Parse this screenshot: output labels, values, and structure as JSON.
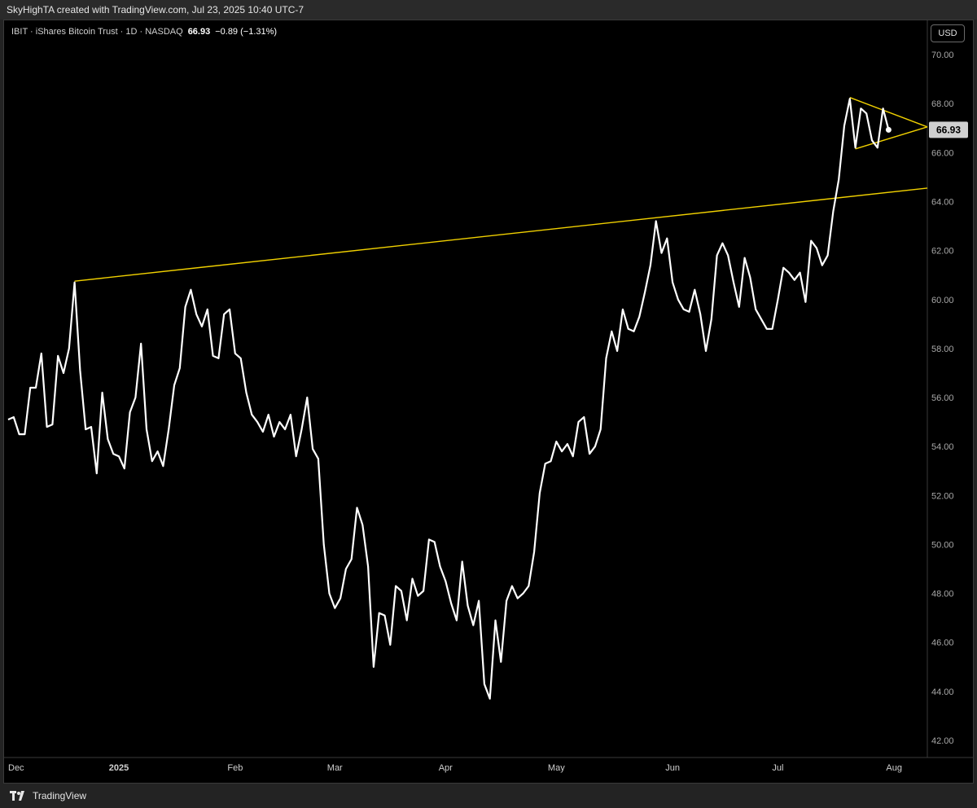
{
  "header": {
    "attribution": "SkyHighTA created with TradingView.com, Jul 23, 2025 10:40 UTC-7"
  },
  "legend": {
    "symbol_text": "IBIT · iShares Bitcoin Trust · 1D · NASDAQ",
    "last": "66.93",
    "change": "−0.89 (−1.31%)"
  },
  "toolbar": {
    "currency": "USD"
  },
  "footer": {
    "brand": "TradingView"
  },
  "colors": {
    "background": "#000000",
    "price_line": "#ffffff",
    "trendline": "#f0d000",
    "price_label_bg": "#d0d0d0"
  },
  "chart_data": {
    "type": "line",
    "title": "IBIT · iShares Bitcoin Trust · 1D · NASDAQ",
    "ylim": [
      41.3,
      71.4
    ],
    "xlim": [
      0,
      166
    ],
    "yticks": [
      "70.00",
      "68.00",
      "66.00",
      "64.00",
      "62.00",
      "60.00",
      "58.00",
      "56.00",
      "54.00",
      "52.00",
      "50.00",
      "48.00",
      "46.00",
      "44.00",
      "42.00"
    ],
    "xticks": [
      {
        "label": "Dec",
        "x": 0
      },
      {
        "label": "2025",
        "x": 20
      },
      {
        "label": "Feb",
        "x": 41
      },
      {
        "label": "Mar",
        "x": 59
      },
      {
        "label": "Apr",
        "x": 79
      },
      {
        "label": "May",
        "x": 99
      },
      {
        "label": "Jun",
        "x": 120
      },
      {
        "label": "Jul",
        "x": 139
      },
      {
        "label": "Aug",
        "x": 160
      }
    ],
    "last_price_label": "66.93",
    "series": [
      {
        "values": [
          55.1,
          55.2,
          54.5,
          54.5,
          56.4,
          56.4,
          57.8,
          54.8,
          54.9,
          57.7,
          57.0,
          58.0,
          60.7,
          57.1,
          54.7,
          54.8,
          52.9,
          56.2,
          54.3,
          53.7,
          53.6,
          53.1,
          55.4,
          56.0,
          58.2,
          54.7,
          53.4,
          53.8,
          53.2,
          54.7,
          56.5,
          57.2,
          59.7,
          60.4,
          59.4,
          58.9,
          59.6,
          57.7,
          57.6,
          59.4,
          59.6,
          57.8,
          57.6,
          56.2,
          55.3,
          55.0,
          54.6,
          55.3,
          54.4,
          55.0,
          54.7,
          55.3,
          53.6,
          54.7,
          56.0,
          53.9,
          53.5,
          50.0,
          48.0,
          47.4,
          47.8,
          49.0,
          49.4,
          51.5,
          50.8,
          49.1,
          45.0,
          47.2,
          47.1,
          45.9,
          48.3,
          48.1,
          46.9,
          48.6,
          47.9,
          48.1,
          50.2,
          50.1,
          49.1,
          48.5,
          47.6,
          46.9,
          49.3,
          47.5,
          46.7,
          47.7,
          44.3,
          43.7,
          46.9,
          45.2,
          47.7,
          48.3,
          47.8,
          48.0,
          48.3,
          49.7,
          52.1,
          53.3,
          53.4,
          54.2,
          53.8,
          54.1,
          53.6,
          55.0,
          55.2,
          53.7,
          54.0,
          54.7,
          57.6,
          58.7,
          57.9,
          59.6,
          58.8,
          58.7,
          59.3,
          60.3,
          61.4,
          63.2,
          61.9,
          62.5,
          60.7,
          60.0,
          59.6,
          59.5,
          60.4,
          59.4,
          57.9,
          59.2,
          61.8,
          62.3,
          61.8,
          60.7,
          59.7,
          61.7,
          60.9,
          59.6,
          59.2,
          58.8,
          58.8,
          60.0,
          61.3,
          61.1,
          60.8,
          61.1,
          59.9,
          62.4,
          62.1,
          61.4,
          61.8,
          63.6,
          64.9,
          67.1,
          68.2,
          66.2,
          67.8,
          67.6,
          66.5,
          66.2,
          67.8,
          66.93
        ]
      }
    ],
    "trendlines": [
      {
        "x1": 12,
        "y1": 60.75,
        "x2": 166,
        "y2": 64.55
      },
      {
        "x1": 152,
        "y1": 68.25,
        "x2": 166,
        "y2": 67.05
      },
      {
        "x1": 153,
        "y1": 66.15,
        "x2": 166,
        "y2": 67.05
      }
    ]
  }
}
